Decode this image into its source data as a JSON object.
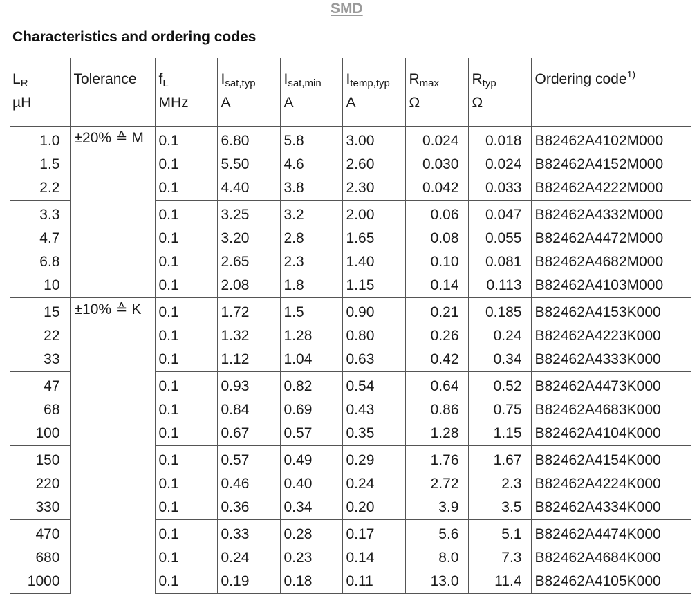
{
  "header_label": "SMD",
  "title": "Characteristics and ordering codes",
  "columns": {
    "lr": {
      "symbol": "L",
      "sub": "R",
      "unit": "µH"
    },
    "tolerance": {
      "label": "Tolerance"
    },
    "fl": {
      "symbol": "f",
      "sub": "L",
      "unit": "MHz"
    },
    "isat_typ": {
      "symbol": "I",
      "sub": "sat,typ",
      "unit": "A"
    },
    "isat_min": {
      "symbol": "I",
      "sub": "sat,min",
      "unit": "A"
    },
    "itemp_typ": {
      "symbol": "I",
      "sub": "temp,typ",
      "unit": "A"
    },
    "rmax": {
      "symbol": "R",
      "sub": "max",
      "unit": "Ω"
    },
    "rtyp": {
      "symbol": "R",
      "sub": "typ",
      "unit": "Ω"
    },
    "ordering": {
      "label": "Ordering code",
      "sup": "1)"
    }
  },
  "tolerances": [
    "±20% ≙ M",
    "±10% ≙ K"
  ],
  "rows": [
    [
      "1.0",
      "0.1",
      "6.80",
      "5.8",
      "3.00",
      "0.024",
      "0.018",
      "B82462A4102M000"
    ],
    [
      "1.5",
      "0.1",
      "5.50",
      "4.6",
      "2.60",
      "0.030",
      "0.024",
      "B82462A4152M000"
    ],
    [
      "2.2",
      "0.1",
      "4.40",
      "3.8",
      "2.30",
      "0.042",
      "0.033",
      "B82462A4222M000"
    ],
    [
      "3.3",
      "0.1",
      "3.25",
      "3.2",
      "2.00",
      "0.06",
      "0.047",
      "B82462A4332M000"
    ],
    [
      "4.7",
      "0.1",
      "3.20",
      "2.8",
      "1.65",
      "0.08",
      "0.055",
      "B82462A4472M000"
    ],
    [
      "6.8",
      "0.1",
      "2.65",
      "2.3",
      "1.40",
      "0.10",
      "0.081",
      "B82462A4682M000"
    ],
    [
      "10",
      "0.1",
      "2.08",
      "1.8",
      "1.15",
      "0.14",
      "0.113",
      "B82462A4103M000"
    ],
    [
      "15",
      "0.1",
      "1.72",
      "1.5",
      "0.90",
      "0.21",
      "0.185",
      "B82462A4153K000"
    ],
    [
      "22",
      "0.1",
      "1.32",
      "1.28",
      "0.80",
      "0.26",
      "0.24",
      "B82462A4223K000"
    ],
    [
      "33",
      "0.1",
      "1.12",
      "1.04",
      "0.63",
      "0.42",
      "0.34",
      "B82462A4333K000"
    ],
    [
      "47",
      "0.1",
      "0.93",
      "0.82",
      "0.54",
      "0.64",
      "0.52",
      "B82462A4473K000"
    ],
    [
      "68",
      "0.1",
      "0.84",
      "0.69",
      "0.43",
      "0.86",
      "0.75",
      "B82462A4683K000"
    ],
    [
      "100",
      "0.1",
      "0.67",
      "0.57",
      "0.35",
      "1.28",
      "1.15",
      "B82462A4104K000"
    ],
    [
      "150",
      "0.1",
      "0.57",
      "0.49",
      "0.29",
      "1.76",
      "1.67",
      "B82462A4154K000"
    ],
    [
      "220",
      "0.1",
      "0.46",
      "0.40",
      "0.24",
      "2.72",
      "2.3",
      "B82462A4224K000"
    ],
    [
      "330",
      "0.1",
      "0.36",
      "0.34",
      "0.20",
      "3.9",
      "3.5",
      "B82462A4334K000"
    ],
    [
      "470",
      "0.1",
      "0.33",
      "0.28",
      "0.17",
      "5.6",
      "5.1",
      "B82462A4474K000"
    ],
    [
      "680",
      "0.1",
      "0.24",
      "0.23",
      "0.14",
      "8.0",
      "7.3",
      "B82462A4684K000"
    ],
    [
      "1000",
      "0.1",
      "0.19",
      "0.18",
      "0.11",
      "13.0",
      "11.4",
      "B82462A4105K000"
    ]
  ]
}
